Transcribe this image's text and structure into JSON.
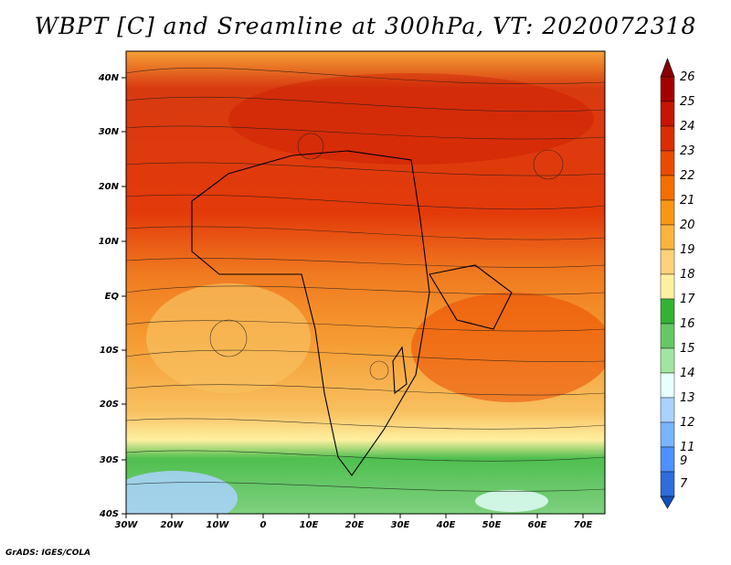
{
  "title": "WBPT [C] and Sreamline at 300hPa, VT: 2020072318",
  "credit": "GrADS: IGES/COLA",
  "map": {
    "lat_ticks": [
      "40N",
      "30N",
      "20N",
      "10N",
      "EQ",
      "10S",
      "20S",
      "30S",
      "40S"
    ],
    "lon_ticks": [
      "30W",
      "20W",
      "10W",
      "0",
      "10E",
      "20E",
      "30E",
      "40E",
      "50E",
      "60E",
      "70E"
    ]
  },
  "colorbar": {
    "labels": [
      "26",
      "25",
      "24",
      "23",
      "22",
      "21",
      "20",
      "19",
      "18",
      "17",
      "16",
      "15",
      "14",
      "13",
      "12",
      "11",
      "9",
      "7"
    ],
    "colors": [
      "#a50000",
      "#c81400",
      "#dc2d00",
      "#eb4b00",
      "#f56e00",
      "#fa9614",
      "#fcb43c",
      "#fed278",
      "#fff0a0",
      "#32b432",
      "#64c864",
      "#a0e6a0",
      "#e6ffff",
      "#aad2ff",
      "#78b4ff",
      "#4b91ff",
      "#2d6edc",
      "#1450be"
    ]
  }
}
